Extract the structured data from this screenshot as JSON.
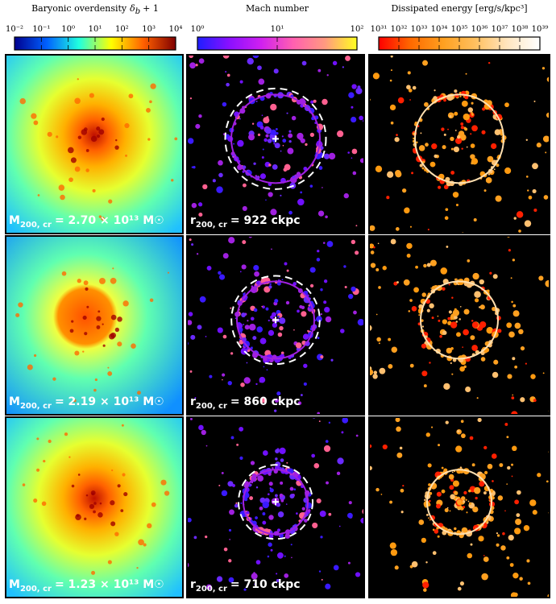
{
  "colorbars": [
    {
      "title": "Baryonic overdensity",
      "symbol": "δ",
      "subscript": "b",
      "suffix": "+ 1",
      "scale": "log",
      "xlim": [
        0.01,
        10000
      ],
      "xticks": [
        {
          "value": 0.01,
          "label": "10⁻²"
        },
        {
          "value": 0.1,
          "label": "10⁻¹"
        },
        {
          "value": 1,
          "label": "10⁰"
        },
        {
          "value": 10,
          "label": "10¹"
        },
        {
          "value": 100,
          "label": "10²"
        },
        {
          "value": 1000,
          "label": "10³"
        },
        {
          "value": 10000,
          "label": "10⁴"
        }
      ],
      "colors": [
        "#00008f",
        "#0060ff",
        "#20ffdf",
        "#ffff00",
        "#ff6000",
        "#800000"
      ]
    },
    {
      "title": "Mach number",
      "scale": "log",
      "xlim": [
        1,
        100
      ],
      "xticks": [
        {
          "value": 1,
          "label": "10⁰"
        },
        {
          "value": 10,
          "label": "10¹"
        },
        {
          "value": 100,
          "label": "10²"
        }
      ],
      "colors": [
        "#1e1eff",
        "#8a10ff",
        "#d020f0",
        "#ff60b0",
        "#ff9a80",
        "#ffff20"
      ]
    },
    {
      "title": "Dissipated energy [erg/s/kpc³]",
      "scale": "log",
      "xlim": [
        1e+31,
        1e+39
      ],
      "xticks": [
        {
          "value": 1e+31,
          "label": "10³¹"
        },
        {
          "value": 1e+32,
          "label": "10³²"
        },
        {
          "value": 1e+33,
          "label": "10³³"
        },
        {
          "value": 1e+34,
          "label": "10³⁴"
        },
        {
          "value": 1e+35,
          "label": "10³⁵"
        },
        {
          "value": 1e+36,
          "label": "10³⁶"
        },
        {
          "value": 1e+37,
          "label": "10³⁷"
        },
        {
          "value": 1e+38,
          "label": "10³⁸"
        },
        {
          "value": 1e+39,
          "label": "10³⁹"
        }
      ],
      "colors": [
        "#ff0000",
        "#ff6a00",
        "#ffa020",
        "#ffc060",
        "#ffe6c0",
        "#ffffff"
      ]
    }
  ],
  "rows": [
    {
      "mass": {
        "symbol": "M",
        "subscript": "200, cr",
        "text": "= 2.70 × 10¹³ M☉"
      },
      "radius": {
        "symbol": "r",
        "subscript": "200, cr",
        "text": "= 922 ckpc"
      }
    },
    {
      "mass": {
        "symbol": "M",
        "subscript": "200, cr",
        "text": "= 2.19 × 10¹³ M☉"
      },
      "radius": {
        "symbol": "r",
        "subscript": "200, cr",
        "text": "= 860 ckpc"
      }
    },
    {
      "mass": {
        "symbol": "M",
        "subscript": "200, cr",
        "text": "= 1.23 × 10¹³ M☉"
      },
      "radius": {
        "symbol": "r",
        "subscript": "200, cr",
        "text": "= 710 ckpc"
      }
    }
  ]
}
